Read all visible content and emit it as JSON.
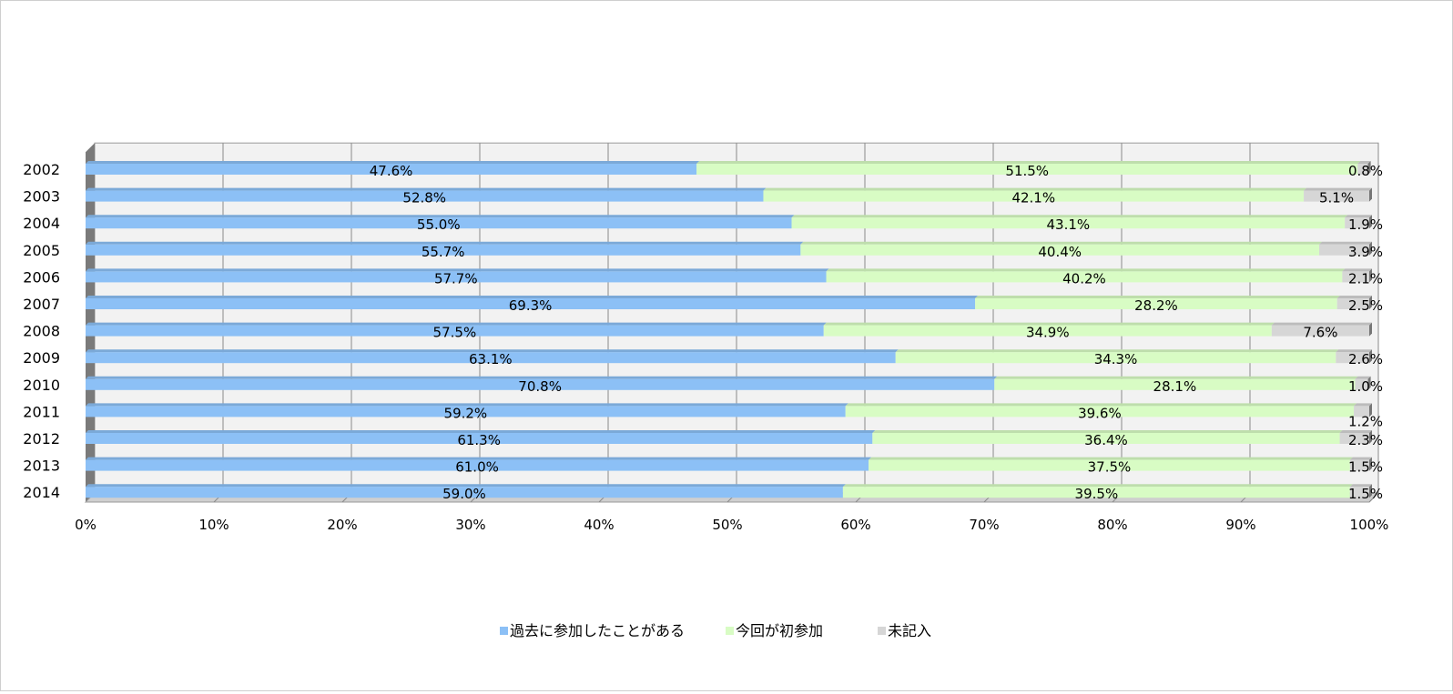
{
  "chart_data": {
    "type": "bar",
    "orientation": "horizontal",
    "stacked": "percent",
    "title": "",
    "xlabel": "",
    "ylabel": "",
    "categories": [
      "2002",
      "2003",
      "2004",
      "2005",
      "2006",
      "2007",
      "2008",
      "2009",
      "2010",
      "2011",
      "2012",
      "2013",
      "2014"
    ],
    "series": [
      {
        "name": "過去に参加したことがある",
        "color": "#8cc0f6",
        "values": [
          47.6,
          52.8,
          55.0,
          55.7,
          57.7,
          69.3,
          57.5,
          63.1,
          70.8,
          59.2,
          61.3,
          61.0,
          59.0
        ],
        "labels": [
          "47.6%",
          "52.8%",
          "55.0%",
          "55.7%",
          "57.7%",
          "69.3%",
          "57.5%",
          "63.1%",
          "70.8%",
          "59.2%",
          "61.3%",
          "61.0%",
          "59.0%"
        ]
      },
      {
        "name": "今回が初参加",
        "color": "#d8fcc4",
        "values": [
          51.5,
          42.1,
          43.1,
          40.4,
          40.2,
          28.2,
          34.9,
          34.3,
          28.1,
          39.6,
          36.4,
          37.5,
          39.5
        ],
        "labels": [
          "51.5%",
          "42.1%",
          "43.1%",
          "40.4%",
          "40.2%",
          "28.2%",
          "34.9%",
          "34.3%",
          "28.1%",
          "39.6%",
          "36.4%",
          "37.5%",
          "39.5%"
        ]
      },
      {
        "name": "未記入",
        "color": "#d6d6d6",
        "values": [
          0.8,
          5.1,
          1.9,
          3.9,
          2.1,
          2.5,
          7.6,
          2.6,
          1.0,
          1.2,
          2.3,
          1.5,
          1.5
        ],
        "labels": [
          "0.8%",
          "5.1%",
          "1.9%",
          "3.9%",
          "2.1%",
          "2.5%",
          "7.6%",
          "2.6%",
          "1.0%",
          "1.2%",
          "2.3%",
          "1.5%",
          "1.5%"
        ]
      }
    ],
    "xlim": [
      0,
      100
    ],
    "x_ticks": [
      "0%",
      "10%",
      "20%",
      "30%",
      "40%",
      "50%",
      "60%",
      "70%",
      "80%",
      "90%",
      "100%"
    ],
    "grid": true,
    "legend_position": "bottom"
  }
}
